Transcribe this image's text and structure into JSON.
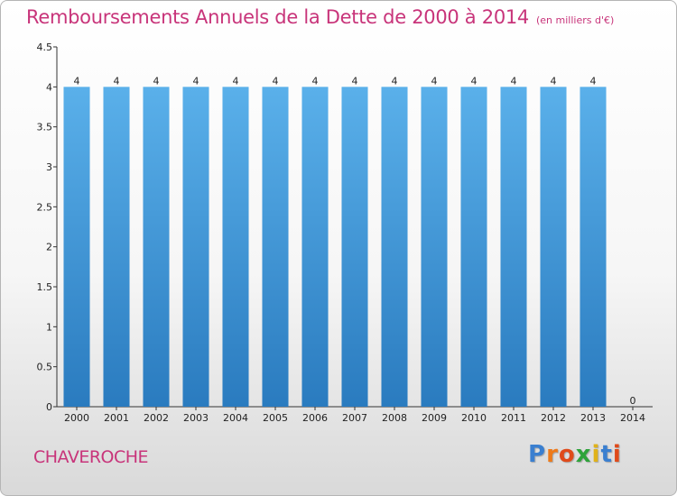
{
  "header": {
    "title": "Remboursements Annuels de la Dette de 2000 à 2014",
    "unit": "(en milliers d'€)"
  },
  "footer": {
    "commune": "CHAVEROCHE",
    "logo_letters": [
      "P",
      "r",
      "o",
      "x",
      "i",
      "t",
      "i"
    ]
  },
  "colors": {
    "title": "#c8347a",
    "bar_top": "#5ab0ea",
    "bar_bottom": "#2a7bbf",
    "logo": [
      "#3a7fd0",
      "#ee7a1a",
      "#e04a1a",
      "#2ea33a",
      "#e0b21a",
      "#3a7fd0",
      "#e04a1a"
    ]
  },
  "chart_data": {
    "type": "bar",
    "title": "Remboursements Annuels de la Dette de 2000 à 2014",
    "xlabel": "",
    "ylabel": "",
    "categories": [
      "2000",
      "2001",
      "2002",
      "2003",
      "2004",
      "2005",
      "2006",
      "2007",
      "2008",
      "2009",
      "2010",
      "2011",
      "2012",
      "2013",
      "2014"
    ],
    "values": [
      4,
      4,
      4,
      4,
      4,
      4,
      4,
      4,
      4,
      4,
      4,
      4,
      4,
      4,
      0
    ],
    "data_labels": [
      "4",
      "4",
      "4",
      "4",
      "4",
      "4",
      "4",
      "4",
      "4",
      "4",
      "4",
      "4",
      "4",
      "4",
      "0"
    ],
    "ylim": [
      0,
      4.5
    ],
    "yticks": [
      0,
      0.5,
      1,
      1.5,
      2,
      2.5,
      3,
      3.5,
      4,
      4.5
    ],
    "ytick_labels": [
      "0",
      "0.5",
      "1",
      "1.5",
      "2",
      "2.5",
      "3",
      "3.5",
      "4",
      "4.5"
    ],
    "grid": false,
    "legend": "none"
  }
}
